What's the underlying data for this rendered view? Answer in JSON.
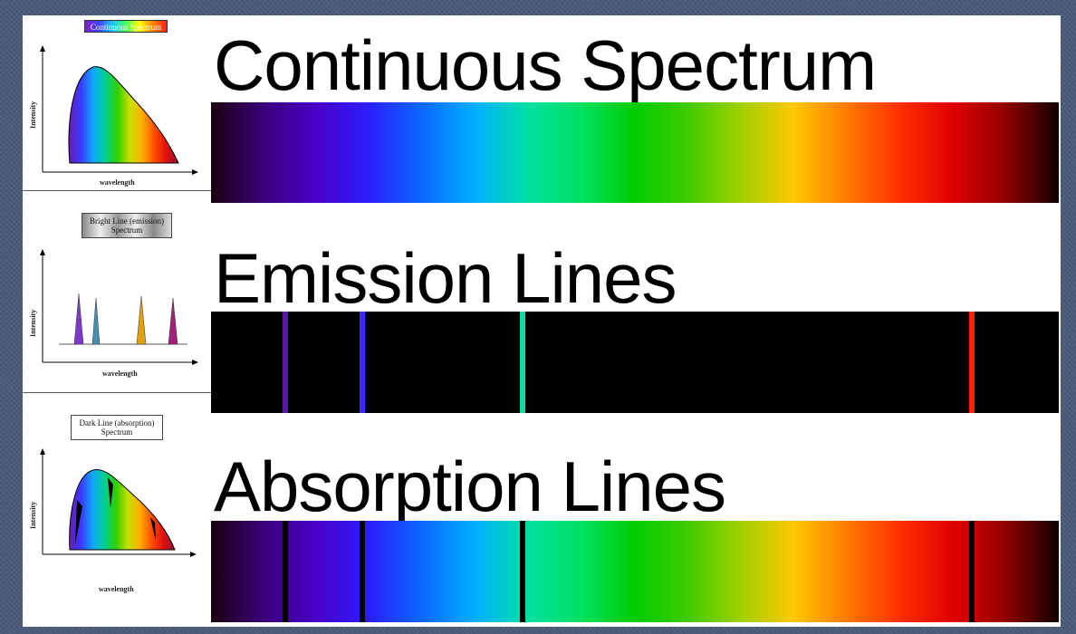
{
  "spectrum_gradient": [
    "#1a0010",
    "#3a007a",
    "#4a00c8",
    "#2a20ff",
    "#0a6aff",
    "#00b0ff",
    "#00e0a0",
    "#00e060",
    "#00cc00",
    "#40cc00",
    "#a0d000",
    "#ffc800",
    "#ff7a00",
    "#ff3000",
    "#e00000",
    "#900000",
    "#100000"
  ],
  "left_panel": {
    "continuous": {
      "title": "Continuous Spectrum",
      "y_label": "Intensity",
      "x_label": "wavelength"
    },
    "emission": {
      "title_line1": "Bright Line (emission)",
      "title_line2": "Spectrum",
      "y_label": "Intensity",
      "x_label": "wavelength",
      "peak_colors": [
        "#7d3ac8",
        "#4a8fb0",
        "#e0a010",
        "#a0207a"
      ]
    },
    "absorption": {
      "title_line1": "Dark Line (absorption)",
      "title_line2": "Spectrum",
      "y_label": "Intensity",
      "x_label": "wavelength"
    }
  },
  "right_panel": {
    "continuous": {
      "heading": "Continuous Spectrum"
    },
    "emission": {
      "heading": "Emission Lines",
      "background": "#000000",
      "lines": [
        {
          "position": 0.088,
          "color": "#5a1aa0"
        },
        {
          "position": 0.178,
          "color": "#3a2aff"
        },
        {
          "position": 0.367,
          "color": "#10d8a0"
        },
        {
          "position": 0.897,
          "color": "#ff2000"
        }
      ]
    },
    "absorption": {
      "heading": "Absorption Lines",
      "lines": [
        {
          "position": 0.088,
          "color": "#000000"
        },
        {
          "position": 0.178,
          "color": "#000000"
        },
        {
          "position": 0.367,
          "color": "#000000"
        },
        {
          "position": 0.897,
          "color": "#000000"
        }
      ]
    }
  }
}
